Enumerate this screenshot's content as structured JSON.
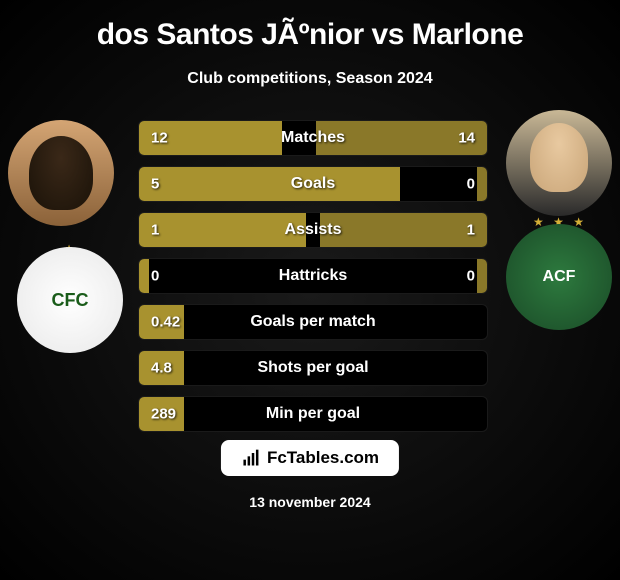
{
  "title": "dos Santos JÃºnior vs Marlone",
  "subtitle": "Club competitions, Season 2024",
  "player_left": {
    "name": "dos Santos Junior",
    "club": "Coritiba"
  },
  "player_right": {
    "name": "Marlone",
    "club": "Chapecoense"
  },
  "colors": {
    "bar_primary": "#a8922f",
    "bar_secondary": "#8a7829",
    "background_dark": "#000000",
    "text": "#ffffff"
  },
  "stats": [
    {
      "label": "Matches",
      "left_value": "12",
      "right_value": "14",
      "left_pct": 41,
      "right_pct": 49,
      "left_color": "#a8922f",
      "right_color": "#8a7829"
    },
    {
      "label": "Goals",
      "left_value": "5",
      "right_value": "0",
      "left_pct": 75,
      "right_pct": 3,
      "left_color": "#a8922f",
      "right_color": "#8a7829"
    },
    {
      "label": "Assists",
      "left_value": "1",
      "right_value": "1",
      "left_pct": 48,
      "right_pct": 48,
      "left_color": "#a8922f",
      "right_color": "#8a7829"
    },
    {
      "label": "Hattricks",
      "left_value": "0",
      "right_value": "0",
      "left_pct": 3,
      "right_pct": 3,
      "left_color": "#a8922f",
      "right_color": "#8a7829"
    },
    {
      "label": "Goals per match",
      "left_value": "0.42",
      "right_value": "",
      "left_pct": 13,
      "right_pct": 0,
      "left_color": "#a8922f",
      "right_color": "#8a7829"
    },
    {
      "label": "Shots per goal",
      "left_value": "4.8",
      "right_value": "",
      "left_pct": 13,
      "right_pct": 0,
      "left_color": "#a8922f",
      "right_color": "#8a7829"
    },
    {
      "label": "Min per goal",
      "left_value": "289",
      "right_value": "",
      "left_pct": 13,
      "right_pct": 0,
      "left_color": "#a8922f",
      "right_color": "#8a7829"
    }
  ],
  "footer": {
    "brand": "FcTables.com",
    "date": "13 november 2024"
  }
}
